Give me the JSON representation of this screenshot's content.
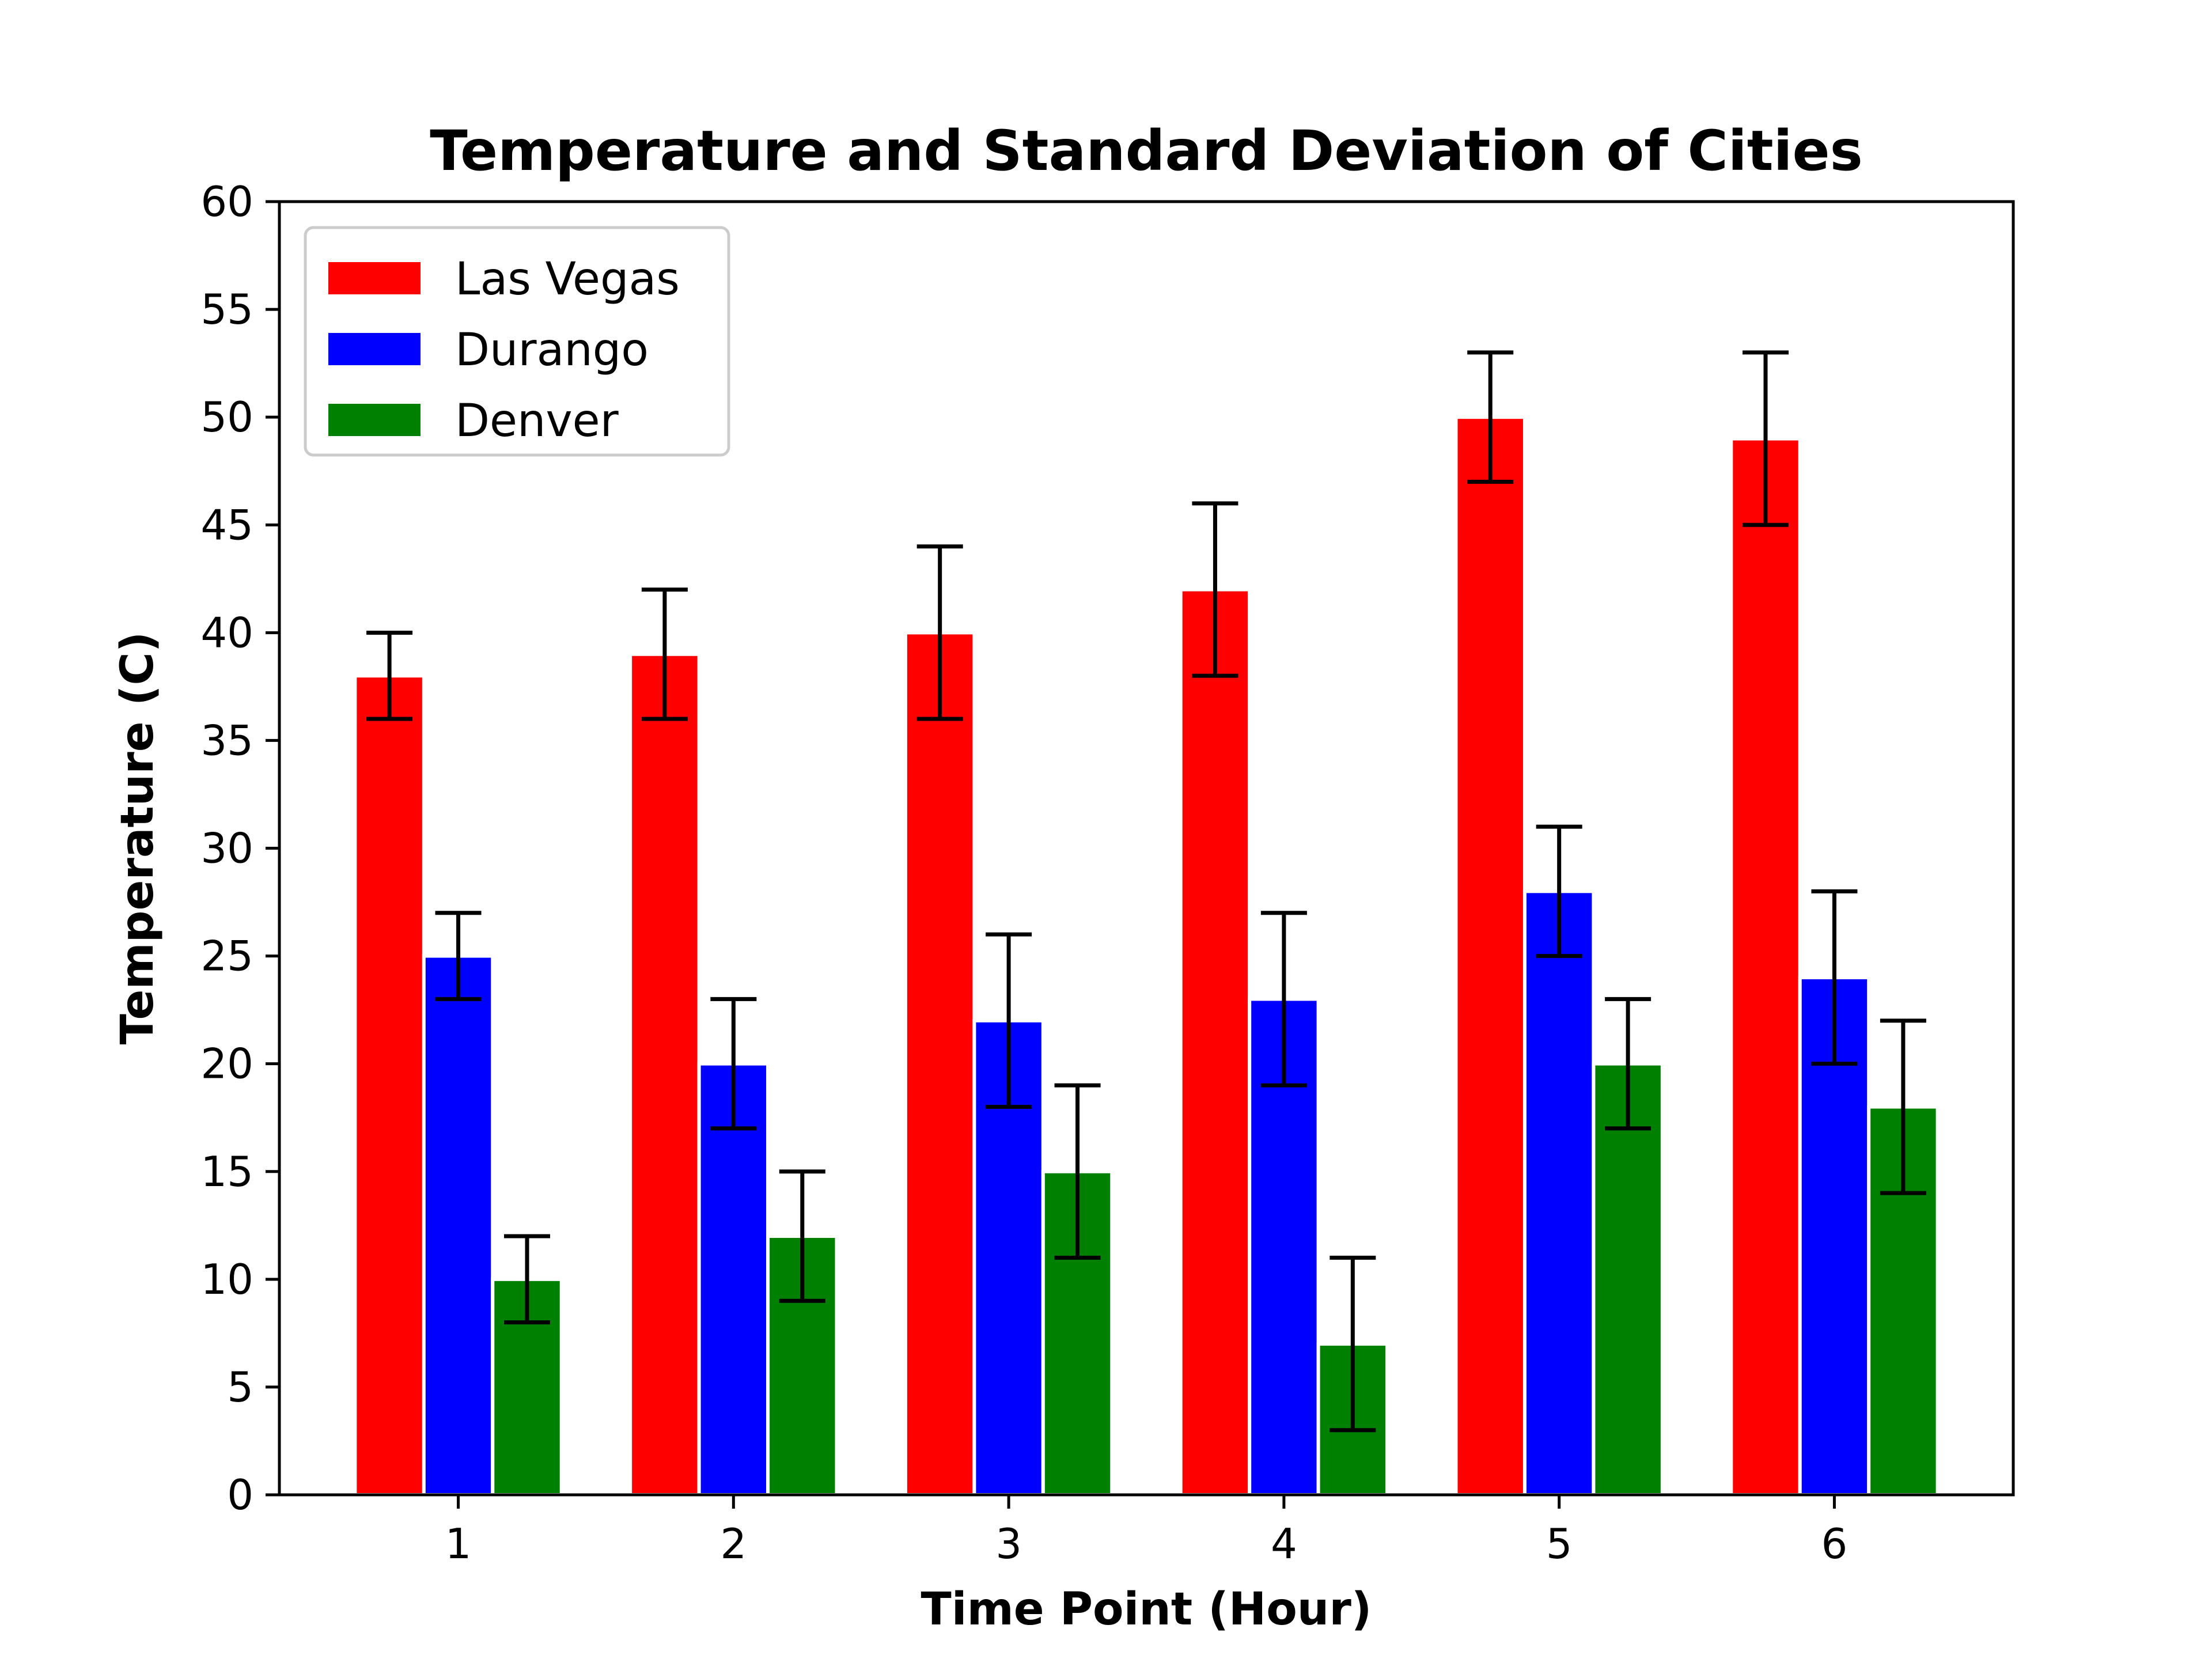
{
  "chart_data": {
    "type": "bar",
    "title": "Temperature and Standard Deviation of Cities",
    "xlabel": "Time Point (Hour)",
    "ylabel": "Temperature (C)",
    "categories": [
      "1",
      "2",
      "3",
      "4",
      "5",
      "6"
    ],
    "ylim": [
      0,
      60
    ],
    "yticks": [
      0,
      5,
      10,
      15,
      20,
      25,
      30,
      35,
      40,
      45,
      50,
      55,
      60
    ],
    "grid": false,
    "legend_position": "top-left",
    "series": [
      {
        "name": "Las Vegas",
        "color": "#ff0000",
        "values": [
          38,
          39,
          40,
          42,
          50,
          49
        ],
        "errors": [
          2,
          3,
          4,
          4,
          3,
          4
        ]
      },
      {
        "name": "Durango",
        "color": "#0000ff",
        "values": [
          25,
          20,
          22,
          23,
          28,
          24
        ],
        "errors": [
          2,
          3,
          4,
          4,
          3,
          4
        ]
      },
      {
        "name": "Denver",
        "color": "#008000",
        "values": [
          10,
          12,
          15,
          7,
          20,
          18
        ],
        "errors": [
          2,
          3,
          4,
          4,
          3,
          4
        ]
      }
    ]
  }
}
